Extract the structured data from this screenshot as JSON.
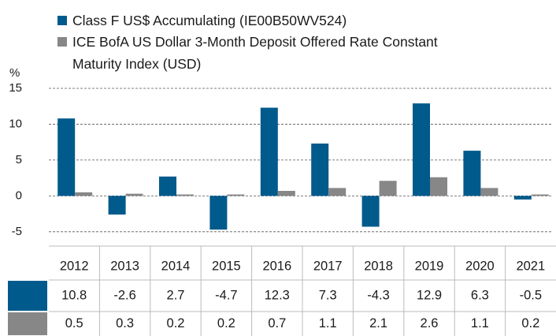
{
  "chart_data": {
    "type": "bar",
    "y_label": "%",
    "categories": [
      "2012",
      "2013",
      "2014",
      "2015",
      "2016",
      "2017",
      "2018",
      "2019",
      "2020",
      "2021"
    ],
    "series": [
      {
        "name": "Class F US$ Accumulating (IE00B50WV524)",
        "color": "#005a8c",
        "values": [
          10.8,
          -2.6,
          2.7,
          -4.7,
          12.3,
          7.3,
          -4.3,
          12.9,
          6.3,
          -0.5
        ]
      },
      {
        "name": "ICE BofA US Dollar 3-Month Deposit Offered Rate Constant Maturity Index (USD)",
        "color": "#878787",
        "values": [
          0.5,
          0.3,
          0.2,
          0.2,
          0.7,
          1.1,
          2.1,
          2.6,
          1.1,
          0.2
        ]
      }
    ],
    "ylim": [
      -7,
      15
    ],
    "yticks": [
      -5,
      0,
      5,
      10,
      15
    ],
    "grid": true
  }
}
